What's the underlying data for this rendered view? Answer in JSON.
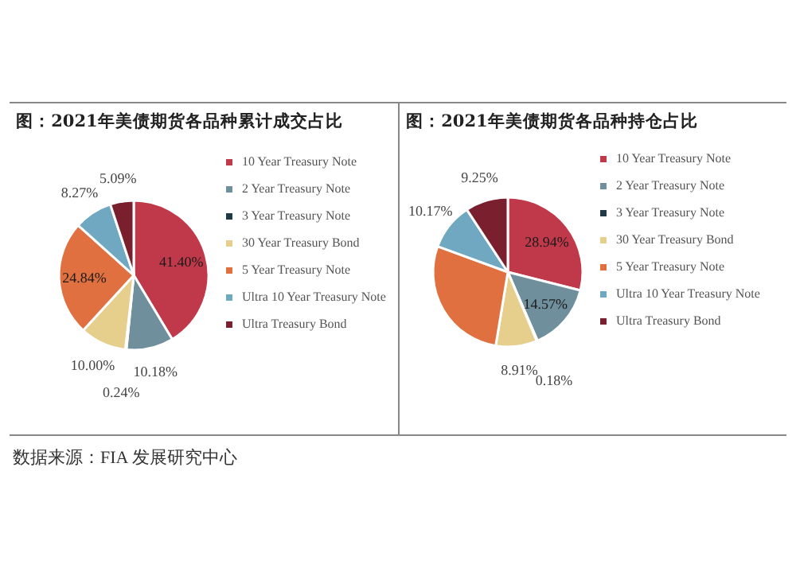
{
  "chart_data": [
    {
      "type": "pie",
      "title": "图：2021年美债期货各品种累计成交占比",
      "categories": [
        "10 Year Treasury Note",
        "2 Year Treasury Note",
        "3 Year Treasury Note",
        "30 Year Treasury Bond",
        "5 Year Treasury Note",
        "Ultra 10 Year Treasury Note",
        "Ultra Treasury Bond"
      ],
      "values": [
        41.4,
        10.18,
        0.24,
        10.0,
        24.84,
        8.27,
        5.09
      ],
      "value_labels": [
        "41.40%",
        "10.18%",
        "0.24%",
        "10.00%",
        "24.84%",
        "8.27%",
        "5.09%"
      ],
      "colors": [
        "#c0394a",
        "#6f8f9c",
        "#1f3a45",
        "#e6cf8c",
        "#e0703f",
        "#6fa8c0",
        "#7a1f2e"
      ],
      "legend": "right",
      "annotations": [
        "数据来源：FIA 发展研究中心"
      ]
    },
    {
      "type": "pie",
      "title": "图：2021年美债期货各品种持仓占比",
      "categories": [
        "10 Year Treasury Note",
        "2 Year Treasury Note",
        "3 Year Treasury Note",
        "30 Year Treasury Bond",
        "5 Year Treasury Note",
        "Ultra 10 Year Treasury Note",
        "Ultra Treasury Bond"
      ],
      "values": [
        28.94,
        14.57,
        0.18,
        8.91,
        27.98,
        10.17,
        9.25
      ],
      "value_labels": [
        "28.94%",
        "14.57%",
        "0.18%",
        "8.91%",
        null,
        "10.17%",
        "9.25%"
      ],
      "colors": [
        "#c0394a",
        "#6f8f9c",
        "#1f3a45",
        "#e6cf8c",
        "#e0703f",
        "#6fa8c0",
        "#7a1f2e"
      ],
      "legend": "right"
    }
  ]
}
